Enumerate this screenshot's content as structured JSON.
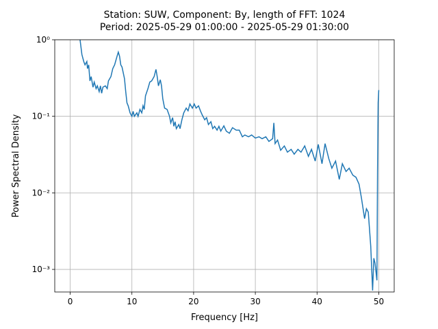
{
  "chart_data": {
    "type": "line",
    "title": "Station: SUW, Component: By, length of FFT: 1024",
    "subtitle": "Period: 2025-05-29 01:00:00 - 2025-05-29 01:30:00",
    "xlabel": "Frequency [Hz]",
    "ylabel": "Power Spectral Density",
    "log_y": true,
    "grid": true,
    "color": "#1f77b4",
    "xlim": [
      -2.5,
      52.5
    ],
    "ylim": [
      0.000507,
      1
    ],
    "xticks": [
      0,
      10,
      20,
      30,
      40,
      50
    ],
    "yticks": [
      {
        "value": 0.001,
        "label": "10⁻³"
      },
      {
        "value": 0.01,
        "label": "10⁻²"
      },
      {
        "value": 0.1,
        "label": "10⁻¹"
      },
      {
        "value": 1,
        "label": "10⁰"
      }
    ],
    "x": [
      1.6,
      1.9,
      2.2,
      2.4,
      2.7,
      2.8,
      3.0,
      3.2,
      3.4,
      3.7,
      3.9,
      4.2,
      4.4,
      4.7,
      4.9,
      5.1,
      5.3,
      5.7,
      6.0,
      6.2,
      6.6,
      6.9,
      7.2,
      7.6,
      7.8,
      8.0,
      8.2,
      8.4,
      8.8,
      9.0,
      9.2,
      9.4,
      9.7,
      10.0,
      10.2,
      10.4,
      10.8,
      11.0,
      11.3,
      11.6,
      11.8,
      12.0,
      12.2,
      12.6,
      12.9,
      13.2,
      13.6,
      13.9,
      14.1,
      14.3,
      14.6,
      14.8,
      15.0,
      15.3,
      15.7,
      15.9,
      16.1,
      16.3,
      16.6,
      16.8,
      17.0,
      17.2,
      17.6,
      17.8,
      18.1,
      18.4,
      18.8,
      19.1,
      19.4,
      19.8,
      20.1,
      20.4,
      20.8,
      21.1,
      21.4,
      21.8,
      22.1,
      22.4,
      22.8,
      23.1,
      23.4,
      23.8,
      24.1,
      24.4,
      24.9,
      25.3,
      25.8,
      26.3,
      26.9,
      27.4,
      27.9,
      28.3,
      28.9,
      29.4,
      30.0,
      30.6,
      31.1,
      31.7,
      32.2,
      32.8,
      33.0,
      33.2,
      33.6,
      34.1,
      34.7,
      35.2,
      35.8,
      36.3,
      36.9,
      37.4,
      38.0,
      38.6,
      39.1,
      39.7,
      40.2,
      40.8,
      41.3,
      41.9,
      42.4,
      43.0,
      43.6,
      44.1,
      44.7,
      45.2,
      45.8,
      46.3,
      46.8,
      47.2,
      47.7,
      48.0,
      48.3,
      48.7,
      49.0,
      49.2,
      49.4,
      49.7,
      49.8,
      49.9,
      50.0
    ],
    "values": [
      1.0,
      0.64,
      0.52,
      0.47,
      0.52,
      0.42,
      0.47,
      0.29,
      0.33,
      0.24,
      0.28,
      0.23,
      0.25,
      0.21,
      0.25,
      0.2,
      0.24,
      0.25,
      0.23,
      0.29,
      0.33,
      0.42,
      0.47,
      0.61,
      0.69,
      0.61,
      0.47,
      0.44,
      0.31,
      0.21,
      0.15,
      0.137,
      0.111,
      0.1,
      0.116,
      0.1,
      0.111,
      0.1,
      0.123,
      0.111,
      0.137,
      0.123,
      0.185,
      0.23,
      0.28,
      0.29,
      0.33,
      0.41,
      0.33,
      0.25,
      0.3,
      0.25,
      0.17,
      0.128,
      0.123,
      0.111,
      0.1,
      0.082,
      0.096,
      0.074,
      0.085,
      0.069,
      0.078,
      0.069,
      0.09,
      0.111,
      0.128,
      0.118,
      0.145,
      0.128,
      0.145,
      0.128,
      0.137,
      0.118,
      0.104,
      0.09,
      0.096,
      0.078,
      0.085,
      0.069,
      0.074,
      0.066,
      0.074,
      0.064,
      0.075,
      0.064,
      0.06,
      0.071,
      0.066,
      0.066,
      0.054,
      0.057,
      0.054,
      0.057,
      0.052,
      0.054,
      0.051,
      0.054,
      0.047,
      0.051,
      0.082,
      0.044,
      0.049,
      0.036,
      0.041,
      0.034,
      0.037,
      0.032,
      0.037,
      0.034,
      0.041,
      0.03,
      0.037,
      0.026,
      0.043,
      0.024,
      0.044,
      0.028,
      0.021,
      0.026,
      0.015,
      0.024,
      0.019,
      0.021,
      0.017,
      0.016,
      0.013,
      0.0085,
      0.0046,
      0.0062,
      0.0056,
      0.002,
      0.00053,
      0.0014,
      0.0012,
      0.00072,
      0.019,
      0.15,
      0.22
    ]
  }
}
